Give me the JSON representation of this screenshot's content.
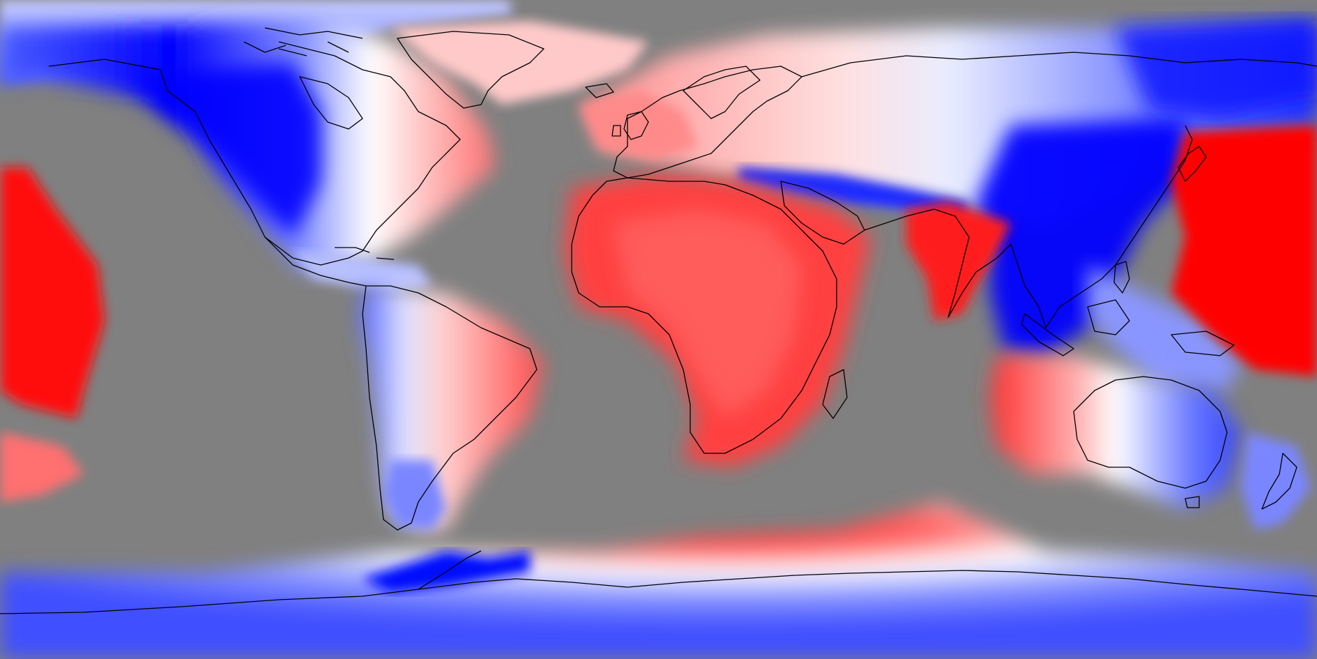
{
  "map": {
    "projection": "equirectangular",
    "background_color": "#808080",
    "coastline_color": "#000000",
    "colors": {
      "strong_negative": "#0000ff",
      "negative": "#6f7dff",
      "neutral": "#ffffff",
      "positive": "#ff8a8a",
      "strong_positive": "#ff1a1a"
    },
    "layers": [
      "ocean-mask",
      "anomaly-field",
      "coastlines"
    ]
  }
}
